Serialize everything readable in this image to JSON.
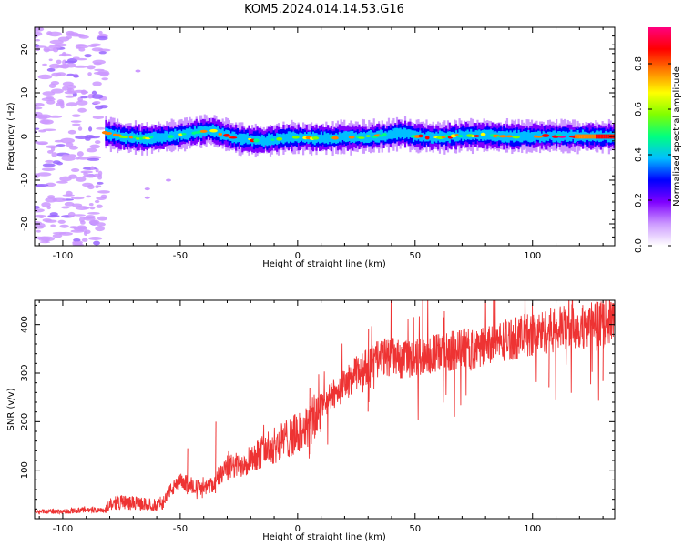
{
  "title": "KOM5.2024.014.14.53.G16",
  "chart_data": [
    {
      "type": "heatmap",
      "xlabel": "Height of straight line (km)",
      "ylabel": "Frequency (Hz)",
      "xlim": [
        -112,
        135
      ],
      "ylim": [
        -25,
        25
      ],
      "x_ticks": [
        -100,
        -50,
        0,
        50,
        100
      ],
      "x_tick_labels": [
        "-100",
        "-50",
        "0",
        "50",
        "100"
      ],
      "y_ticks": [
        -20,
        -10,
        0,
        10,
        20
      ],
      "y_tick_labels": [
        "-20",
        "-10",
        "0",
        "10",
        "20"
      ],
      "colorbar": {
        "label": "Normalized spectral amplitude",
        "range": [
          0,
          0.96
        ],
        "ticks": [
          0.0,
          0.2,
          0.4,
          0.6,
          0.8
        ],
        "tick_labels": [
          "0.0",
          "0.2",
          "0.4",
          "0.6",
          "0.8"
        ],
        "colors": [
          "#ffffff",
          "#cc99ff",
          "#7f00ff",
          "#0000ff",
          "#00bfff",
          "#00ff80",
          "#80ff00",
          "#ffff00",
          "#ff8000",
          "#ff0000",
          "#ff0080"
        ]
      },
      "trace": {
        "description_points_x_km": [
          -82,
          -75,
          -65,
          -55,
          -45,
          -38,
          -34,
          -30,
          -25,
          -20,
          -15,
          -10,
          -5,
          0,
          10,
          20,
          30,
          40,
          45,
          50,
          60,
          70,
          80,
          90,
          100,
          110,
          120,
          130,
          135
        ],
        "frequency_hz": [
          0.8,
          0.0,
          -0.5,
          0.0,
          0.8,
          1.5,
          0.8,
          0.2,
          -0.5,
          -0.8,
          -1.0,
          -0.6,
          -0.2,
          -0.3,
          -0.4,
          -0.2,
          -0.1,
          0.4,
          0.9,
          0.0,
          -0.2,
          0.2,
          0.3,
          0.0,
          0.0,
          0.1,
          0.0,
          0.0,
          0.0
        ]
      },
      "noise_region_x_km": [
        -112,
        -82
      ]
    },
    {
      "type": "line",
      "xlabel": "Height of straight line (km)",
      "ylabel": "SNR (v/v)",
      "xlim": [
        -112,
        135
      ],
      "ylim": [
        0,
        450
      ],
      "x_ticks": [
        -100,
        -50,
        0,
        50,
        100
      ],
      "x_tick_labels": [
        "-100",
        "-50",
        "0",
        "50",
        "100"
      ],
      "y_ticks": [
        100,
        200,
        300,
        400
      ],
      "y_tick_labels": [
        "100",
        "200",
        "300",
        "400"
      ],
      "color": "#ee3333",
      "series": [
        {
          "x": [
            -112,
            -100,
            -90,
            -82,
            -80,
            -75,
            -70,
            -65,
            -60,
            -57,
            -55,
            -50,
            -45,
            -40,
            -35,
            -30,
            -25,
            -20,
            -15,
            -10,
            -5,
            0,
            5,
            10,
            15,
            20,
            25,
            30,
            35,
            40,
            45,
            50,
            55,
            60,
            65,
            70,
            75,
            80,
            85,
            90,
            95,
            100,
            105,
            110,
            115,
            120,
            125,
            130,
            135
          ],
          "values": [
            15,
            15,
            18,
            18,
            30,
            35,
            32,
            30,
            28,
            35,
            55,
            75,
            70,
            60,
            75,
            105,
            110,
            125,
            140,
            150,
            165,
            175,
            190,
            230,
            255,
            275,
            300,
            315,
            330,
            335,
            325,
            330,
            340,
            340,
            345,
            350,
            350,
            355,
            365,
            370,
            375,
            380,
            385,
            390,
            395,
            395,
            400,
            405,
            410
          ]
        }
      ],
      "spikes": [
        {
          "x": -47,
          "y": 145
        },
        {
          "x": -35,
          "y": 200
        },
        {
          "x": 5,
          "y": 270
        },
        {
          "x": 30,
          "y": 390
        },
        {
          "x": 62,
          "y": 415
        },
        {
          "x": 107,
          "y": 420
        },
        {
          "x": 130,
          "y": 440
        }
      ]
    }
  ]
}
